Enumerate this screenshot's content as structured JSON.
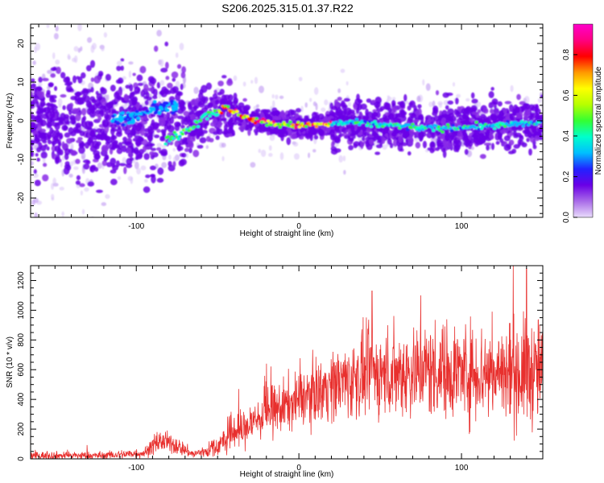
{
  "title": "S206.2025.315.01.37.R22",
  "chart_data": [
    {
      "type": "heatmap",
      "name": "spectrogram",
      "xlabel": "Height of straight line (km)",
      "ylabel": "Frequency (Hz)",
      "xlim": [
        -165,
        150
      ],
      "ylim": [
        -25,
        25
      ],
      "xticks": [
        -100,
        0,
        100
      ],
      "yticks": [
        -20,
        -10,
        0,
        10,
        20
      ],
      "colorbar": {
        "label": "Normalized spectral amplitude",
        "range": [
          0.0,
          0.95
        ],
        "ticks": [
          "0.0",
          "0.2",
          "0.4",
          "0.6",
          "0.8"
        ],
        "colors": [
          "#e9dcfb",
          "#a96be8",
          "#6a00e6",
          "#2222ff",
          "#00bfff",
          "#00ffcc",
          "#33ff33",
          "#b6ff00",
          "#ffff00",
          "#ff9900",
          "#ff0000",
          "#ff0080",
          "#ff00cc"
        ]
      },
      "ridge": {
        "description": "central frequency of the signal band vs height",
        "x": [
          -80,
          -65,
          -55,
          -45,
          -38,
          -30,
          -20,
          -10,
          0,
          15,
          30,
          50,
          80,
          110,
          150
        ],
        "y": [
          -5,
          -1,
          2,
          3,
          2,
          0.5,
          -0.5,
          -1,
          -1.2,
          -1,
          -0.5,
          -1,
          -2,
          -1.5,
          -0.5
        ]
      },
      "upper_branch": {
        "x": [
          -115,
          -100,
          -85,
          -75
        ],
        "y": [
          0,
          1.5,
          3.5,
          4
        ]
      }
    },
    {
      "type": "line",
      "name": "snr",
      "xlabel": "Height of straight line (km)",
      "ylabel": "SNR (10 * v/v)",
      "xlim": [
        -165,
        150
      ],
      "ylim": [
        0,
        1300
      ],
      "xticks": [
        -100,
        0,
        100
      ],
      "yticks": [
        0,
        200,
        400,
        600,
        800,
        1000,
        1200
      ],
      "color": "#e8302e",
      "envelope": {
        "x": [
          -165,
          -120,
          -95,
          -85,
          -75,
          -65,
          -55,
          -45,
          -40,
          -35,
          -30,
          -20,
          -10,
          0,
          20,
          40,
          60,
          80,
          100,
          120,
          140,
          150
        ],
        "mean": [
          22,
          22,
          40,
          120,
          90,
          30,
          60,
          120,
          200,
          180,
          240,
          300,
          350,
          400,
          500,
          560,
          580,
          600,
          590,
          580,
          580,
          580
        ],
        "spread": [
          15,
          15,
          20,
          40,
          35,
          15,
          30,
          50,
          90,
          70,
          80,
          90,
          100,
          100,
          130,
          160,
          170,
          180,
          180,
          190,
          200,
          200
        ]
      },
      "peaks": [
        {
          "x": -37,
          "y": 470
        },
        {
          "x": 45,
          "y": 1130
        },
        {
          "x": 75,
          "y": 1100
        },
        {
          "x": 140,
          "y": 1280
        }
      ]
    }
  ]
}
